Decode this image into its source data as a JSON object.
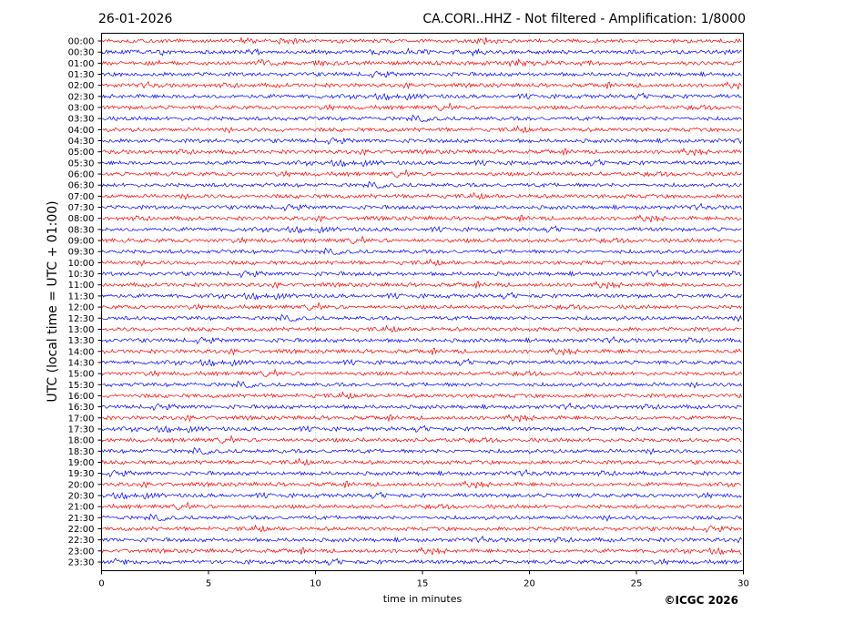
{
  "header": {
    "date": "26-01-2026",
    "title": "CA.CORI..HHZ - Not filtered - Amplification: 1/8000"
  },
  "footer": {
    "copyright": "©ICGC 2026"
  },
  "chart_data": {
    "type": "line",
    "title": "CA.CORI..HHZ - Not filtered - Amplification: 1/8000",
    "xlabel": "time in minutes",
    "ylabel": "UTC (local time = UTC + 01:00)",
    "xlim": [
      0,
      30
    ],
    "x_ticks": [
      0,
      5,
      10,
      15,
      20,
      25,
      30
    ],
    "grid": "vertical dotted at x ticks",
    "trace_labels": [
      "00:00",
      "00:30",
      "01:00",
      "01:30",
      "02:00",
      "02:30",
      "03:00",
      "03:30",
      "04:00",
      "04:30",
      "05:00",
      "05:30",
      "06:00",
      "06:30",
      "07:00",
      "07:30",
      "08:00",
      "08:30",
      "09:00",
      "09:30",
      "10:00",
      "10:30",
      "11:00",
      "11:30",
      "12:00",
      "12:30",
      "13:00",
      "13:30",
      "14:00",
      "14:30",
      "15:00",
      "15:30",
      "16:00",
      "16:30",
      "17:00",
      "17:30",
      "18:00",
      "18:30",
      "19:00",
      "19:30",
      "20:00",
      "20:30",
      "21:00",
      "21:30",
      "22:00",
      "22:30",
      "23:00",
      "23:30"
    ],
    "trace_colors": [
      "#ff0000",
      "#0000ff"
    ],
    "seismogram": "continuous ground-motion traces (helicorder), one line per 30-minute interval, alternating red and blue"
  }
}
